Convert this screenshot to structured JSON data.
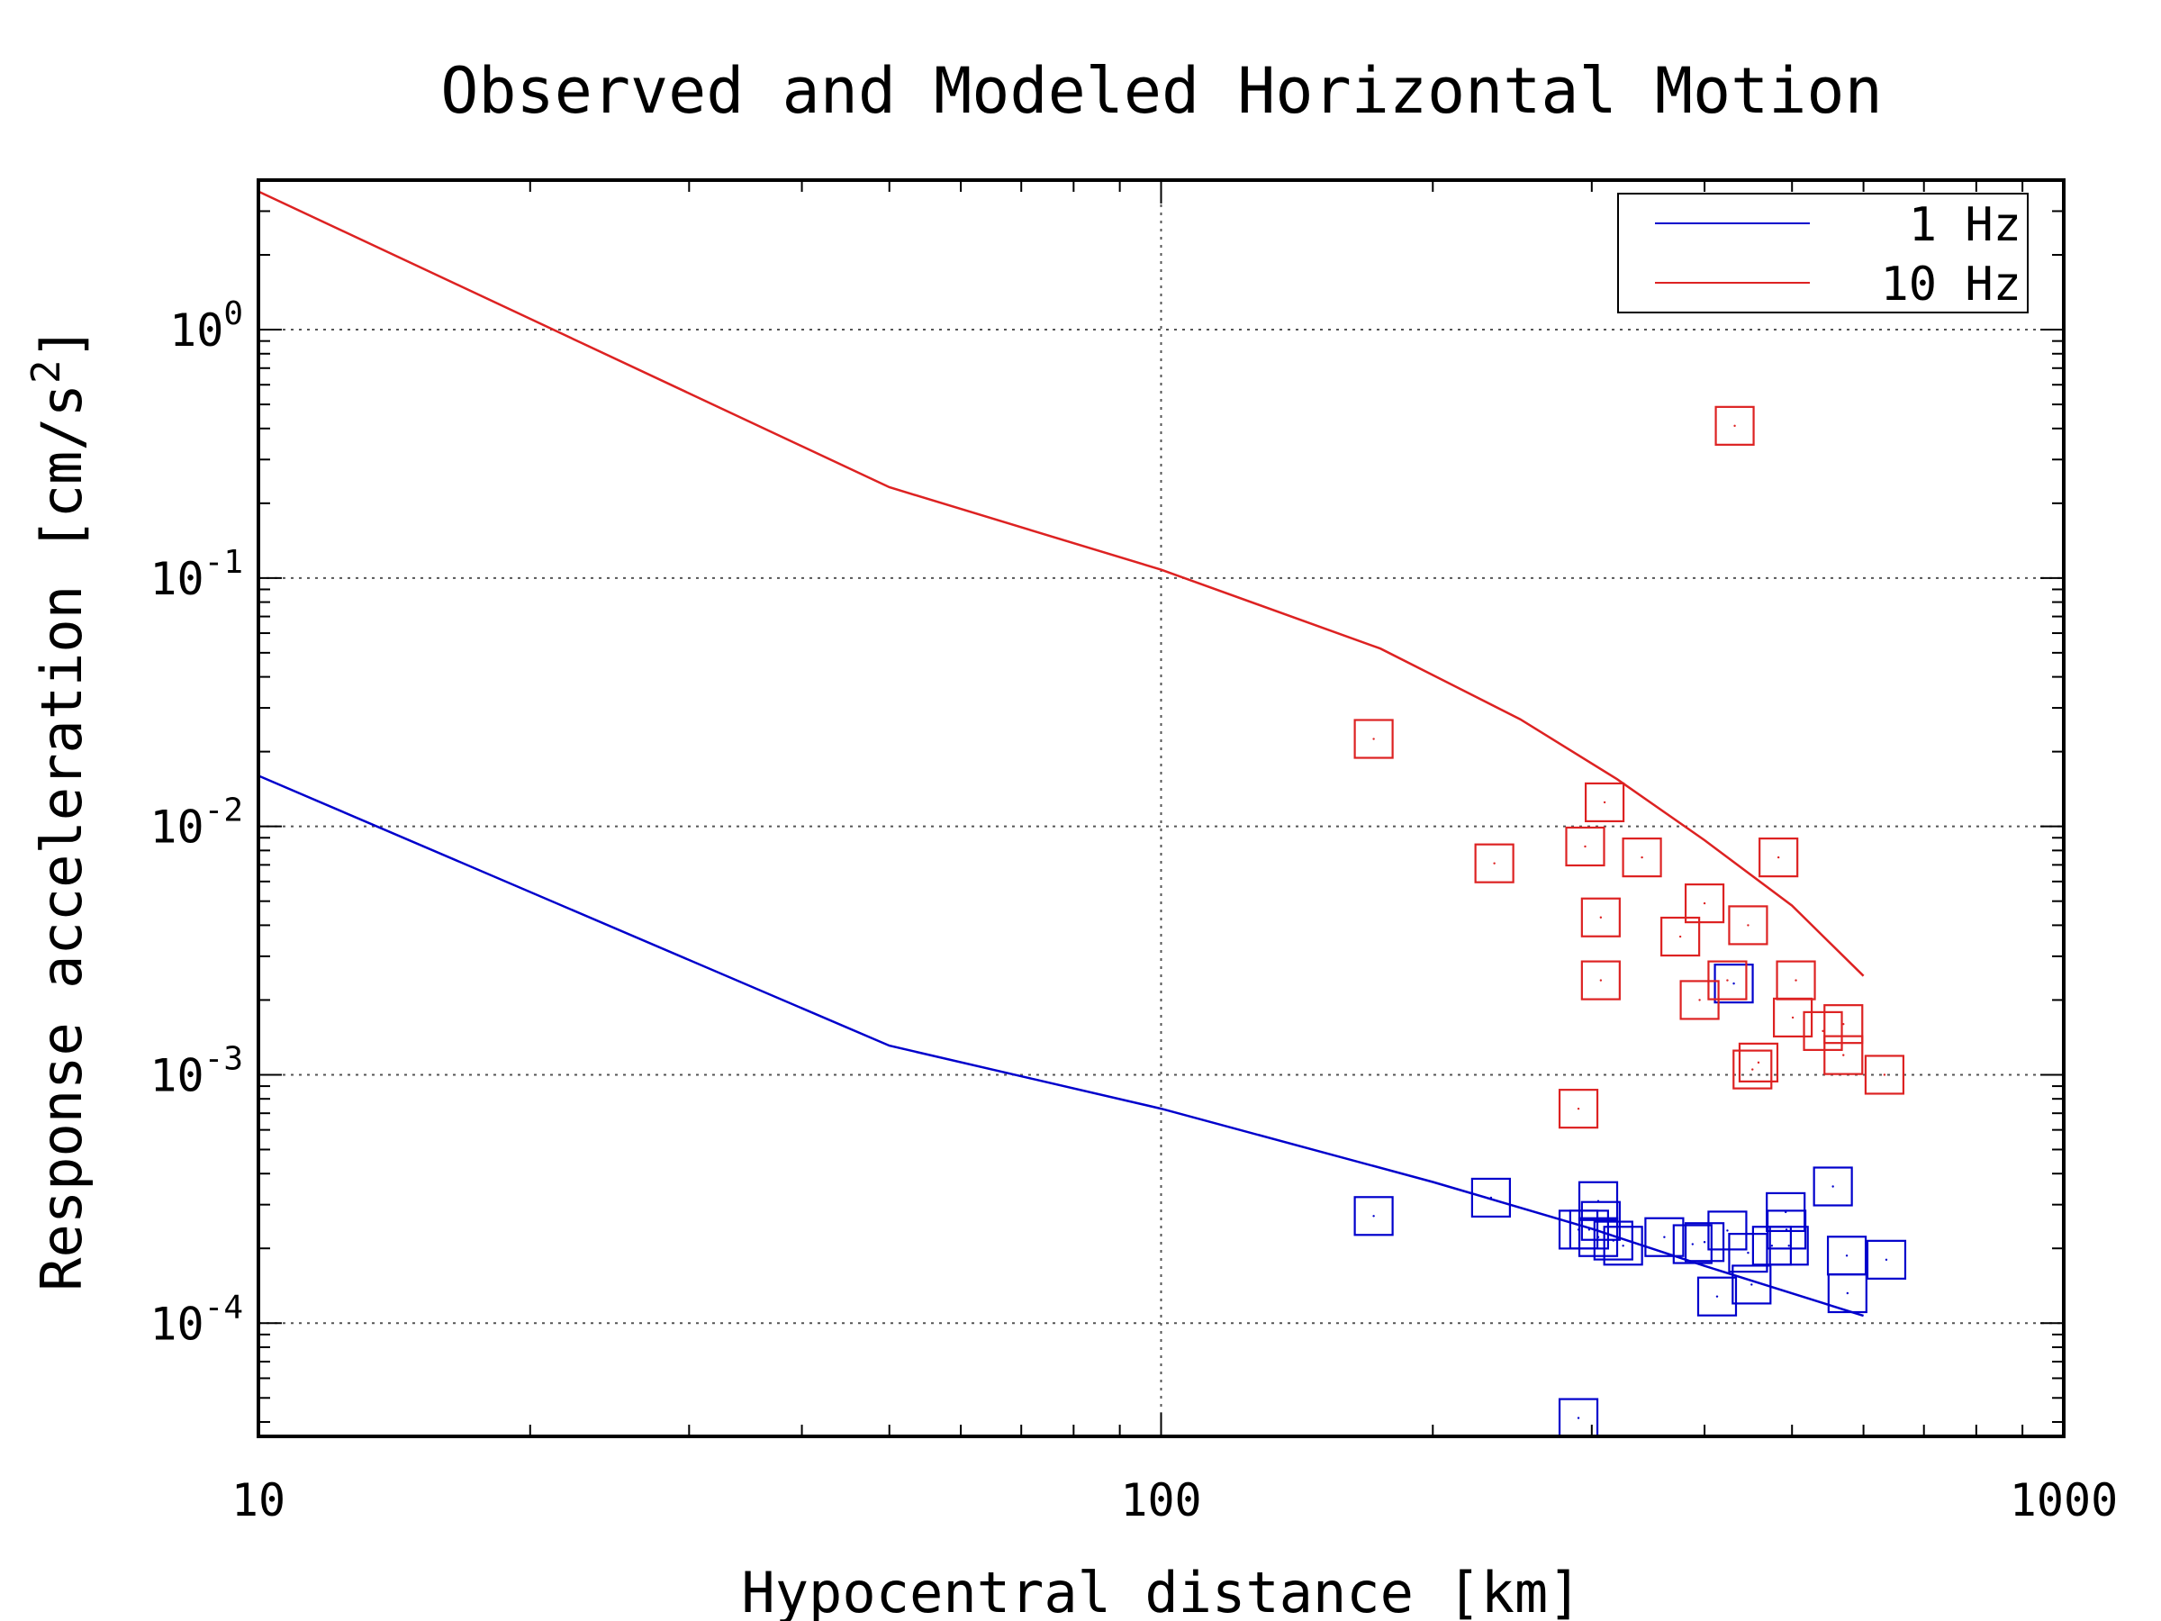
{
  "chart_data": {
    "type": "scatter",
    "title": "Observed and Modeled Horizontal Motion",
    "xlabel": "Hypocentral distance [km]",
    "ylabel_text": "Response acceleration [cm/s",
    "ylabel_sup": "2",
    "ylabel_close": "]",
    "x_scale": "log",
    "y_scale": "log",
    "xlim": [
      10,
      1000
    ],
    "ylim": [
      3.5e-05,
      4.0
    ],
    "x_ticks": [
      {
        "value": 10,
        "label": "10"
      },
      {
        "value": 100,
        "label": "100"
      },
      {
        "value": 1000,
        "label": "1000"
      }
    ],
    "y_ticks": [
      {
        "value": 0.0001,
        "base": "10",
        "exp": "-4"
      },
      {
        "value": 0.001,
        "base": "10",
        "exp": "-3"
      },
      {
        "value": 0.01,
        "base": "10",
        "exp": "-2"
      },
      {
        "value": 0.1,
        "base": "10",
        "exp": "-1"
      },
      {
        "value": 1,
        "base": "10",
        "exp": "0"
      }
    ],
    "grid": true,
    "legend_position": "top-right",
    "series": [
      {
        "name": "1 Hz",
        "color": "#0000cc",
        "model_line": [
          [
            10,
            0.016
          ],
          [
            50,
            0.00131
          ],
          [
            100,
            0.00073
          ],
          [
            200,
            0.00037
          ],
          [
            300,
            0.00024
          ],
          [
            400,
            0.00017
          ],
          [
            600,
            0.000107
          ]
        ],
        "observed": [
          [
            172,
            0.00027
          ],
          [
            232,
            0.00032
          ],
          [
            290,
            0.000238
          ],
          [
            298,
            0.000238
          ],
          [
            305,
            0.00031
          ],
          [
            305,
            0.000222
          ],
          [
            307,
            0.000258
          ],
          [
            317,
            0.000215
          ],
          [
            325,
            0.000205
          ],
          [
            361,
            0.000222
          ],
          [
            388,
            0.000208
          ],
          [
            400,
            0.000212
          ],
          [
            424,
            0.000236
          ],
          [
            413,
            0.000128
          ],
          [
            451,
            0.000143
          ],
          [
            447,
            0.000192
          ],
          [
            475,
            0.000205
          ],
          [
            493,
            0.000238
          ],
          [
            496,
            0.000205
          ],
          [
            555,
            0.000355
          ],
          [
            575,
            0.000187
          ],
          [
            576,
            0.000132
          ],
          [
            636,
            0.00018
          ],
          [
            492,
            0.00028
          ],
          [
            431,
            0.00233
          ],
          [
            290,
            4.15e-05
          ]
        ]
      },
      {
        "name": "10 Hz",
        "color": "#dd2222",
        "model_line": [
          [
            10,
            3.6
          ],
          [
            50,
            0.232
          ],
          [
            100,
            0.108
          ],
          [
            175,
            0.052
          ],
          [
            250,
            0.027
          ],
          [
            320,
            0.0155
          ],
          [
            400,
            0.0088
          ],
          [
            500,
            0.0048
          ],
          [
            600,
            0.0025
          ]
        ],
        "observed": [
          [
            172,
            0.0225
          ],
          [
            234,
            0.0071
          ],
          [
            295,
            0.0083
          ],
          [
            310,
            0.0125
          ],
          [
            307,
            0.0043
          ],
          [
            341,
            0.0075
          ],
          [
            376,
            0.0036
          ],
          [
            307,
            0.0024
          ],
          [
            400,
            0.0049
          ],
          [
            424,
            0.0024
          ],
          [
            447,
            0.004
          ],
          [
            395,
            0.002
          ],
          [
            432,
            0.41
          ],
          [
            483,
            0.0075
          ],
          [
            505,
            0.0024
          ],
          [
            501,
            0.0017
          ],
          [
            541,
            0.0015
          ],
          [
            570,
            0.0016
          ],
          [
            570,
            0.0012
          ],
          [
            452,
            0.00105
          ],
          [
            459,
            0.00112
          ],
          [
            633,
            0.001
          ],
          [
            290,
            0.00073
          ]
        ]
      }
    ]
  }
}
